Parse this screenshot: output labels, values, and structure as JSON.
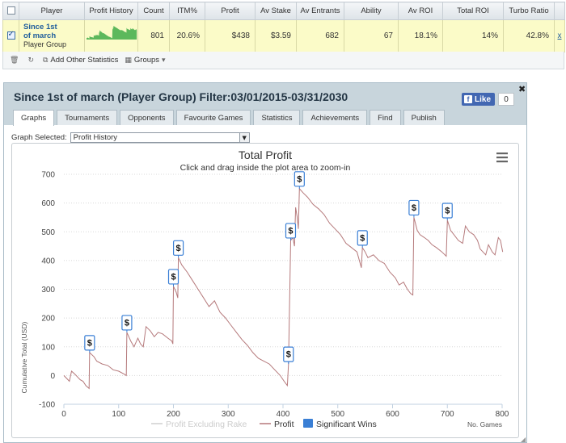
{
  "stats_table": {
    "headers": [
      "",
      "Player",
      "Profit History",
      "Count",
      "ITM%",
      "Profit",
      "Av Stake",
      "Av Entrants",
      "Ability",
      "Av ROI",
      "Total ROI",
      "Turbo Ratio",
      ""
    ],
    "row": {
      "player_name_line1": "Since 1st",
      "player_name_line2": "of march",
      "player_group": "Player Group",
      "count": "801",
      "itm": "20.6%",
      "profit": "$438",
      "av_stake": "$3.59",
      "av_entrants": "682",
      "ability": "67",
      "av_roi": "18.1%",
      "total_roi": "14%",
      "turbo_ratio": "42.8%",
      "remove": "x"
    },
    "sparkline_color": "#5cb85c"
  },
  "toolbar": {
    "add_stats_label": "Add Other Statistics",
    "groups_label": "Groups"
  },
  "panel": {
    "title": "Since 1st of march (Player Group) Filter:03/01/2015-03/31/2030",
    "like_label": "Like",
    "like_count": "0",
    "tabs": [
      "Graphs",
      "Tournaments",
      "Opponents",
      "Favourite Games",
      "Statistics",
      "Achievements",
      "Find",
      "Publish"
    ],
    "active_tab": 0,
    "graph_selected_label": "Graph Selected:",
    "graph_selected_value": "Profit History"
  },
  "chart_data": {
    "type": "line",
    "title": "Total Profit",
    "subtitle": "Click and drag inside the plot area to zoom-in",
    "xlabel": "No. Games",
    "ylabel": "Cumulative Total (USD)",
    "xlim": [
      0,
      800
    ],
    "ylim": [
      -100,
      700
    ],
    "x_ticks": [
      0,
      100,
      200,
      300,
      400,
      500,
      600,
      700,
      800
    ],
    "y_ticks": [
      -100,
      0,
      100,
      200,
      300,
      400,
      500,
      600,
      700
    ],
    "legend": [
      "Profit Excluding Rake",
      "Profit",
      "Significant Wins"
    ],
    "legend_placement": "bottom",
    "grid": true,
    "series": [
      {
        "name": "Profit",
        "color": "#b5797b",
        "points": [
          [
            0,
            0
          ],
          [
            5,
            -10
          ],
          [
            10,
            -20
          ],
          [
            14,
            15
          ],
          [
            20,
            5
          ],
          [
            25,
            -5
          ],
          [
            30,
            -15
          ],
          [
            35,
            -20
          ],
          [
            40,
            -35
          ],
          [
            46,
            -45
          ],
          [
            47,
            80
          ],
          [
            55,
            65
          ],
          [
            60,
            50
          ],
          [
            70,
            40
          ],
          [
            80,
            35
          ],
          [
            90,
            20
          ],
          [
            100,
            15
          ],
          [
            110,
            5
          ],
          [
            114,
            0
          ],
          [
            115,
            150
          ],
          [
            122,
            120
          ],
          [
            128,
            100
          ],
          [
            135,
            130
          ],
          [
            140,
            110
          ],
          [
            145,
            100
          ],
          [
            150,
            170
          ],
          [
            158,
            155
          ],
          [
            165,
            135
          ],
          [
            172,
            150
          ],
          [
            180,
            145
          ],
          [
            190,
            130
          ],
          [
            197,
            120
          ],
          [
            199,
            110
          ],
          [
            200,
            310
          ],
          [
            205,
            290
          ],
          [
            208,
            270
          ],
          [
            209,
            410
          ],
          [
            215,
            385
          ],
          [
            225,
            360
          ],
          [
            235,
            330
          ],
          [
            245,
            300
          ],
          [
            255,
            270
          ],
          [
            265,
            240
          ],
          [
            275,
            260
          ],
          [
            285,
            220
          ],
          [
            295,
            200
          ],
          [
            305,
            175
          ],
          [
            315,
            150
          ],
          [
            325,
            125
          ],
          [
            335,
            105
          ],
          [
            345,
            80
          ],
          [
            355,
            60
          ],
          [
            365,
            50
          ],
          [
            375,
            40
          ],
          [
            385,
            20
          ],
          [
            395,
            0
          ],
          [
            402,
            -20
          ],
          [
            408,
            -35
          ],
          [
            410,
            40
          ],
          [
            414,
            470
          ],
          [
            418,
            480
          ],
          [
            421,
            450
          ],
          [
            423,
            585
          ],
          [
            426,
            550
          ],
          [
            428,
            510
          ],
          [
            430,
            650
          ],
          [
            437,
            635
          ],
          [
            445,
            620
          ],
          [
            455,
            595
          ],
          [
            465,
            580
          ],
          [
            475,
            560
          ],
          [
            485,
            530
          ],
          [
            495,
            510
          ],
          [
            505,
            490
          ],
          [
            515,
            460
          ],
          [
            525,
            445
          ],
          [
            535,
            430
          ],
          [
            543,
            375
          ],
          [
            545,
            445
          ],
          [
            550,
            430
          ],
          [
            555,
            410
          ],
          [
            565,
            420
          ],
          [
            575,
            400
          ],
          [
            585,
            390
          ],
          [
            595,
            360
          ],
          [
            605,
            340
          ],
          [
            612,
            315
          ],
          [
            620,
            325
          ],
          [
            627,
            300
          ],
          [
            633,
            285
          ],
          [
            637,
            280
          ],
          [
            639,
            550
          ],
          [
            645,
            505
          ],
          [
            650,
            490
          ],
          [
            658,
            480
          ],
          [
            665,
            470
          ],
          [
            672,
            455
          ],
          [
            680,
            445
          ],
          [
            690,
            430
          ],
          [
            698,
            415
          ],
          [
            700,
            540
          ],
          [
            706,
            505
          ],
          [
            712,
            490
          ],
          [
            720,
            470
          ],
          [
            728,
            460
          ],
          [
            733,
            520
          ],
          [
            740,
            500
          ],
          [
            748,
            490
          ],
          [
            755,
            470
          ],
          [
            760,
            440
          ],
          [
            765,
            430
          ],
          [
            770,
            420
          ],
          [
            775,
            455
          ],
          [
            782,
            430
          ],
          [
            787,
            420
          ],
          [
            793,
            480
          ],
          [
            797,
            470
          ],
          [
            800,
            440
          ],
          [
            801,
            430
          ]
        ]
      }
    ],
    "significant_wins": [
      {
        "x": 47,
        "y": 80
      },
      {
        "x": 115,
        "y": 150
      },
      {
        "x": 200,
        "y": 310
      },
      {
        "x": 209,
        "y": 410
      },
      {
        "x": 410,
        "y": 40
      },
      {
        "x": 414,
        "y": 470
      },
      {
        "x": 430,
        "y": 650
      },
      {
        "x": 545,
        "y": 445
      },
      {
        "x": 639,
        "y": 550
      },
      {
        "x": 700,
        "y": 540
      }
    ],
    "marker_label": "$",
    "colors": {
      "profit": "#b5797b",
      "excluding_rake": "#cfcfcf",
      "significant_wins": "#3a7fd5"
    }
  }
}
